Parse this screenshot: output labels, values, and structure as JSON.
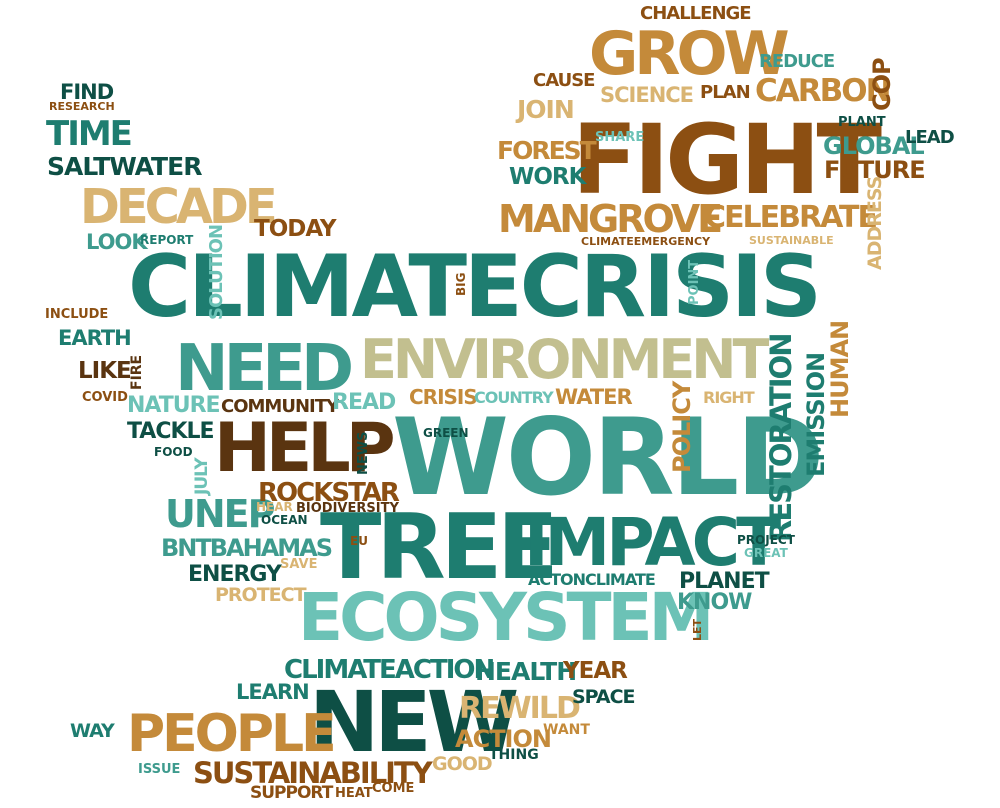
{
  "palette": {
    "dark_teal": "#0e4f45",
    "teal": "#1e7d70",
    "mid_teal": "#3e9b8e",
    "light_teal": "#6cc2b6",
    "brown": "#8c4f12",
    "dark_brown": "#5a3410",
    "tan": "#c48a3a",
    "light_tan": "#d9b472",
    "khaki": "#c2bf8f"
  },
  "words": [
    {
      "text": "CLIMATECRISIS",
      "color": "teal"
    },
    {
      "text": "WORLD",
      "color": "mid_teal"
    },
    {
      "text": "TREE",
      "color": "teal"
    },
    {
      "text": "FIGHT",
      "color": "brown"
    },
    {
      "text": "ENVIRONMENT",
      "color": "khaki"
    },
    {
      "text": "ECOSYSTEM",
      "color": "light_teal"
    },
    {
      "text": "IMPACT",
      "color": "teal"
    },
    {
      "text": "NEW",
      "color": "dark_teal"
    },
    {
      "text": "NEED",
      "color": "mid_teal"
    },
    {
      "text": "HELP",
      "color": "dark_brown"
    },
    {
      "text": "PEOPLE",
      "color": "tan"
    },
    {
      "text": "GROW",
      "color": "tan"
    },
    {
      "text": "DECADE",
      "color": "light_tan"
    },
    {
      "text": "MANGROVE",
      "color": "tan"
    },
    {
      "text": "CELEBRATE",
      "color": "tan"
    },
    {
      "text": "CARBON",
      "color": "tan"
    },
    {
      "text": "TIME",
      "color": "teal"
    },
    {
      "text": "SALTWATER",
      "color": "dark_teal"
    },
    {
      "text": "UNEP",
      "color": "mid_teal"
    },
    {
      "text": "ROCKSTAR",
      "color": "brown"
    },
    {
      "text": "BNTBAHAMAS",
      "color": "mid_teal"
    },
    {
      "text": "SUSTAINABILITY",
      "color": "brown"
    },
    {
      "text": "CLIMATEACTION",
      "color": "teal"
    },
    {
      "text": "HEALTH",
      "color": "teal"
    },
    {
      "text": "REWILD",
      "color": "light_tan"
    },
    {
      "text": "ACTION",
      "color": "tan"
    },
    {
      "text": "RESTORATION",
      "color": "teal"
    },
    {
      "text": "EMISSION",
      "color": "teal"
    },
    {
      "text": "HUMAN",
      "color": "tan"
    },
    {
      "text": "POLICY",
      "color": "tan"
    },
    {
      "text": "FOREST",
      "color": "tan"
    },
    {
      "text": "WORK",
      "color": "teal"
    },
    {
      "text": "SCIENCE",
      "color": "light_tan"
    },
    {
      "text": "PLAN",
      "color": "brown"
    },
    {
      "text": "JOIN",
      "color": "light_tan"
    },
    {
      "text": "CAUSE",
      "color": "brown"
    },
    {
      "text": "REDUCE",
      "color": "mid_teal"
    },
    {
      "text": "CHALLENGE",
      "color": "brown"
    },
    {
      "text": "COP",
      "color": "brown"
    },
    {
      "text": "GLOBAL",
      "color": "mid_teal"
    },
    {
      "text": "FUTURE",
      "color": "brown"
    },
    {
      "text": "PLANT",
      "color": "dark_teal"
    },
    {
      "text": "LEAD",
      "color": "dark_teal"
    },
    {
      "text": "SHARE",
      "color": "light_teal"
    },
    {
      "text": "ADDRESS",
      "color": "light_tan"
    },
    {
      "text": "SUSTAINABLE",
      "color": "light_tan"
    },
    {
      "text": "CLIMATEEMERGENCY",
      "color": "brown"
    },
    {
      "text": "POINT",
      "color": "light_teal"
    },
    {
      "text": "FIND",
      "color": "dark_teal"
    },
    {
      "text": "RESEARCH",
      "color": "brown"
    },
    {
      "text": "TODAY",
      "color": "brown"
    },
    {
      "text": "LOOK",
      "color": "mid_teal"
    },
    {
      "text": "REPORT",
      "color": "teal"
    },
    {
      "text": "SOLUTION",
      "color": "light_teal"
    },
    {
      "text": "BIG",
      "color": "brown"
    },
    {
      "text": "INCLUDE",
      "color": "brown"
    },
    {
      "text": "EARTH",
      "color": "teal"
    },
    {
      "text": "LIKE",
      "color": "dark_brown"
    },
    {
      "text": "FIRE",
      "color": "dark_brown"
    },
    {
      "text": "COVID",
      "color": "brown"
    },
    {
      "text": "NATURE",
      "color": "light_teal"
    },
    {
      "text": "COMMUNITY",
      "color": "dark_brown"
    },
    {
      "text": "READ",
      "color": "light_teal"
    },
    {
      "text": "CRISIS",
      "color": "tan"
    },
    {
      "text": "COUNTRY",
      "color": "light_teal"
    },
    {
      "text": "WATER",
      "color": "tan"
    },
    {
      "text": "RIGHT",
      "color": "light_tan"
    },
    {
      "text": "TACKLE",
      "color": "dark_teal"
    },
    {
      "text": "FOOD",
      "color": "dark_teal"
    },
    {
      "text": "JULY",
      "color": "light_teal"
    },
    {
      "text": "NEWS",
      "color": "dark_teal"
    },
    {
      "text": "GREEN",
      "color": "dark_teal"
    },
    {
      "text": "HEAR",
      "color": "light_tan"
    },
    {
      "text": "BIODIVERSITY",
      "color": "dark_brown"
    },
    {
      "text": "OCEAN",
      "color": "dark_teal"
    },
    {
      "text": "EU",
      "color": "brown"
    },
    {
      "text": "ENERGY",
      "color": "dark_teal"
    },
    {
      "text": "SAVE",
      "color": "light_tan"
    },
    {
      "text": "PROTECT",
      "color": "light_tan"
    },
    {
      "text": "ACTONCLIMATE",
      "color": "teal"
    },
    {
      "text": "PROJECT",
      "color": "dark_teal"
    },
    {
      "text": "GREAT",
      "color": "light_teal"
    },
    {
      "text": "PLANET",
      "color": "dark_teal"
    },
    {
      "text": "KNOW",
      "color": "mid_teal"
    },
    {
      "text": "LET",
      "color": "brown"
    },
    {
      "text": "YEAR",
      "color": "brown"
    },
    {
      "text": "SPACE",
      "color": "dark_teal"
    },
    {
      "text": "LEARN",
      "color": "teal"
    },
    {
      "text": "WAY",
      "color": "teal"
    },
    {
      "text": "WANT",
      "color": "tan"
    },
    {
      "text": "THING",
      "color": "dark_teal"
    },
    {
      "text": "GOOD",
      "color": "light_tan"
    },
    {
      "text": "ISSUE",
      "color": "mid_teal"
    },
    {
      "text": "SUPPORT",
      "color": "brown"
    },
    {
      "text": "HEAT",
      "color": "brown"
    },
    {
      "text": "COME",
      "color": "brown"
    }
  ]
}
